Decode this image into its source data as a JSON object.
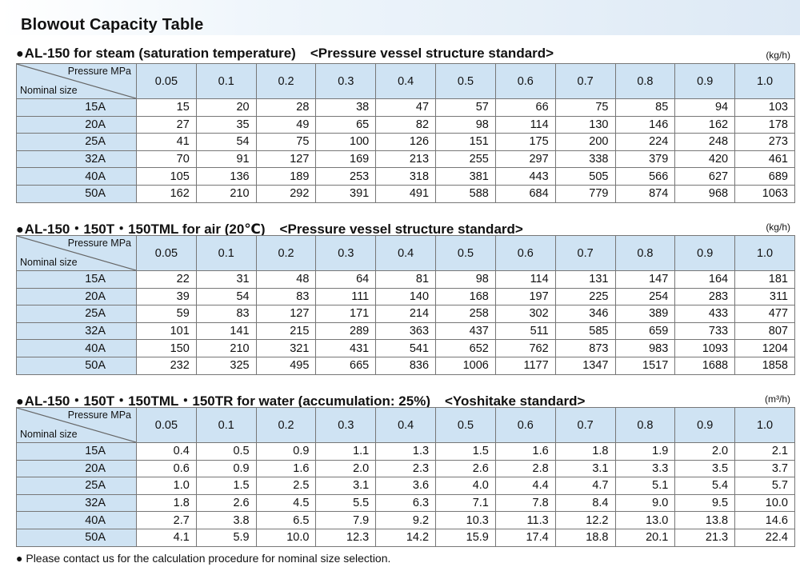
{
  "title": "Blowout Capacity Table",
  "pressure_header": "Pressure MPa",
  "size_header": "Nominal size",
  "pressures": [
    "0.05",
    "0.1",
    "0.2",
    "0.3",
    "0.4",
    "0.5",
    "0.6",
    "0.7",
    "0.8",
    "0.9",
    "1.0"
  ],
  "sizes": [
    "15A",
    "20A",
    "25A",
    "32A",
    "40A",
    "50A"
  ],
  "tables": [
    {
      "heading_dot": "●",
      "heading": "AL-150 for steam (saturation temperature)",
      "standard": "<Pressure vessel structure standard>",
      "unit": "(kg/h)",
      "rows": [
        [
          "15",
          "20",
          "28",
          "38",
          "47",
          "57",
          "66",
          "75",
          "85",
          "94",
          "103"
        ],
        [
          "27",
          "35",
          "49",
          "65",
          "82",
          "98",
          "114",
          "130",
          "146",
          "162",
          "178"
        ],
        [
          "41",
          "54",
          "75",
          "100",
          "126",
          "151",
          "175",
          "200",
          "224",
          "248",
          "273"
        ],
        [
          "70",
          "91",
          "127",
          "169",
          "213",
          "255",
          "297",
          "338",
          "379",
          "420",
          "461"
        ],
        [
          "105",
          "136",
          "189",
          "253",
          "318",
          "381",
          "443",
          "505",
          "566",
          "627",
          "689"
        ],
        [
          "162",
          "210",
          "292",
          "391",
          "491",
          "588",
          "684",
          "779",
          "874",
          "968",
          "1063"
        ]
      ]
    },
    {
      "heading_dot": "●",
      "heading": "AL-150・150T・150TML for air (20℃)",
      "standard": "<Pressure vessel structure standard>",
      "unit": "(kg/h)",
      "rows": [
        [
          "22",
          "31",
          "48",
          "64",
          "81",
          "98",
          "114",
          "131",
          "147",
          "164",
          "181"
        ],
        [
          "39",
          "54",
          "83",
          "111",
          "140",
          "168",
          "197",
          "225",
          "254",
          "283",
          "311"
        ],
        [
          "59",
          "83",
          "127",
          "171",
          "214",
          "258",
          "302",
          "346",
          "389",
          "433",
          "477"
        ],
        [
          "101",
          "141",
          "215",
          "289",
          "363",
          "437",
          "511",
          "585",
          "659",
          "733",
          "807"
        ],
        [
          "150",
          "210",
          "321",
          "431",
          "541",
          "652",
          "762",
          "873",
          "983",
          "1093",
          "1204"
        ],
        [
          "232",
          "325",
          "495",
          "665",
          "836",
          "1006",
          "1177",
          "1347",
          "1517",
          "1688",
          "1858"
        ]
      ]
    },
    {
      "heading_dot": "●",
      "heading": "AL-150・150T・150TML・150TR for water (accumulation: 25%)",
      "standard": "<Yoshitake standard>",
      "unit": "(m³/h)",
      "rows": [
        [
          "0.4",
          "0.5",
          "0.9",
          "1.1",
          "1.3",
          "1.5",
          "1.6",
          "1.8",
          "1.9",
          "2.0",
          "2.1"
        ],
        [
          "0.6",
          "0.9",
          "1.6",
          "2.0",
          "2.3",
          "2.6",
          "2.8",
          "3.1",
          "3.3",
          "3.5",
          "3.7"
        ],
        [
          "1.0",
          "1.5",
          "2.5",
          "3.1",
          "3.6",
          "4.0",
          "4.4",
          "4.7",
          "5.1",
          "5.4",
          "5.7"
        ],
        [
          "1.8",
          "2.6",
          "4.5",
          "5.5",
          "6.3",
          "7.1",
          "7.8",
          "8.4",
          "9.0",
          "9.5",
          "10.0"
        ],
        [
          "2.7",
          "3.8",
          "6.5",
          "7.9",
          "9.2",
          "10.3",
          "11.3",
          "12.2",
          "13.0",
          "13.8",
          "14.6"
        ],
        [
          "4.1",
          "5.9",
          "10.0",
          "12.3",
          "14.2",
          "15.9",
          "17.4",
          "18.8",
          "20.1",
          "21.3",
          "22.4"
        ]
      ]
    }
  ],
  "footnote_dot": "●",
  "footnote": "Please contact us for the calculation procedure for nominal size selection."
}
